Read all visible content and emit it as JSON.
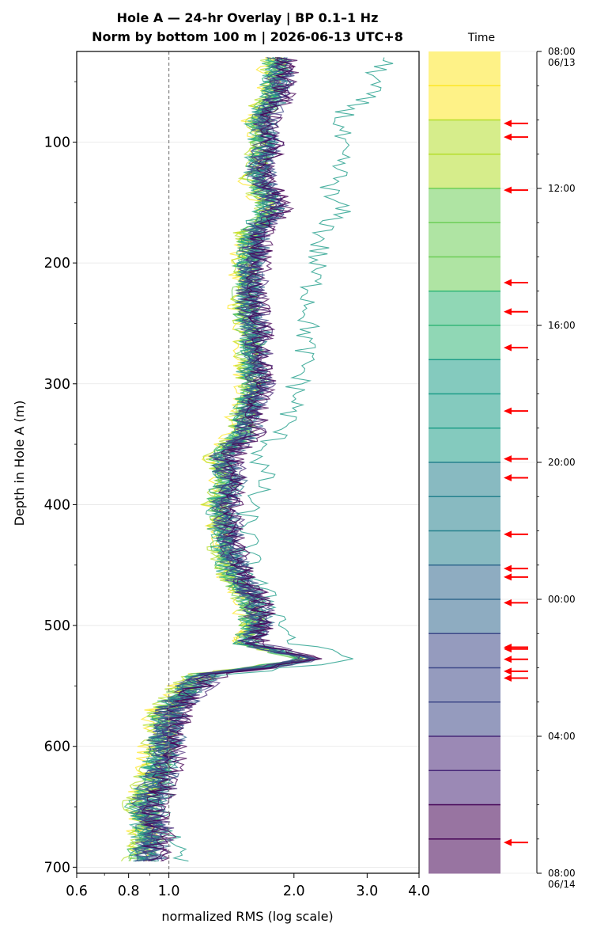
{
  "chart_data": {
    "type": "line",
    "title": "Hole A — 24-hr Overlay  |  BP 0.1–1 Hz",
    "subtitle": "Norm by bottom 100 m  |  2026-06-13 UTC+8",
    "xlabel": "normalized RMS  (log scale)",
    "ylabel": "Depth in Hole A (m)",
    "x_scale": "log",
    "xlim": [
      0.6,
      4.0
    ],
    "ylim": [
      705,
      25
    ],
    "x_ticks": [
      "0.6",
      "0.8",
      "1.0",
      "2.0",
      "3.0",
      "4.0"
    ],
    "y_ticks": [
      "100",
      "200",
      "300",
      "400",
      "500",
      "600",
      "700"
    ],
    "reference_line": {
      "x": 1.0,
      "style": "dashed",
      "color": "#808080"
    },
    "grid": "horizontal",
    "series_count": 24,
    "colormap": [
      "#440154",
      "#482878",
      "#3e4989",
      "#31688e",
      "#26828e",
      "#1f9e89",
      "#35b779",
      "#6ece58",
      "#b5de2b",
      "#fde725"
    ],
    "depth_anchors": [
      30,
      60,
      80,
      100,
      130,
      145,
      155,
      175,
      200,
      230,
      260,
      290,
      300,
      320,
      340,
      360,
      380,
      400,
      420,
      440,
      460,
      480,
      500,
      515,
      528,
      540,
      550,
      570,
      590,
      610,
      630,
      650,
      670,
      695
    ],
    "base_profile": [
      1.78,
      1.75,
      1.62,
      1.65,
      1.58,
      1.68,
      1.72,
      1.55,
      1.52,
      1.5,
      1.55,
      1.54,
      1.58,
      1.5,
      1.48,
      1.3,
      1.35,
      1.3,
      1.32,
      1.35,
      1.4,
      1.55,
      1.57,
      1.5,
      2.1,
      1.2,
      1.1,
      0.97,
      0.95,
      0.93,
      0.9,
      0.85,
      0.88,
      0.85
    ],
    "outlier_profile": [
      3.3,
      3.0,
      2.6,
      2.55,
      2.55,
      2.4,
      2.6,
      2.35,
      2.25,
      2.2,
      2.15,
      2.1,
      2.05,
      2.0,
      1.85,
      1.65,
      1.7,
      1.55,
      1.55,
      1.55,
      1.6,
      1.75,
      1.9,
      2.0,
      2.85,
      1.35,
      1.15,
      1.0,
      1.0,
      1.0,
      0.95,
      0.95,
      1.0,
      1.1
    ],
    "colorbar": {
      "title": "Time",
      "ticks": [
        {
          "time": "08:00",
          "date": "06/13",
          "hour": 0
        },
        {
          "time": "12:00",
          "date": "",
          "hour": 4
        },
        {
          "time": "16:00",
          "date": "",
          "hour": 8
        },
        {
          "time": "20:00",
          "date": "",
          "hour": 12
        },
        {
          "time": "00:00",
          "date": "",
          "hour": 16
        },
        {
          "time": "04:00",
          "date": "",
          "hour": 20
        },
        {
          "time": "08:00",
          "date": "06/14",
          "hour": 24
        }
      ],
      "arrow_hours": [
        2.1,
        2.5,
        4.05,
        6.75,
        7.6,
        8.65,
        10.5,
        11.9,
        12.45,
        14.1,
        15.1,
        15.35,
        16.1,
        17.4,
        17.45,
        17.75,
        18.1,
        18.3,
        23.1
      ],
      "arrow_color": "#ff0000"
    }
  }
}
